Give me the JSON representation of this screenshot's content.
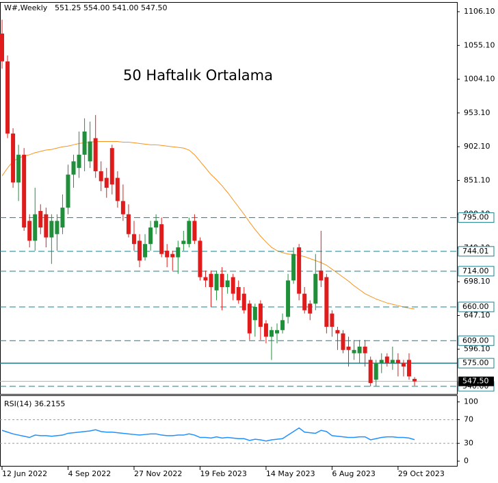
{
  "chart_data": [
    {
      "type": "candlestick",
      "symbol_timeframe": "W#,Weekly",
      "ohlc_text": "551.25 554.00 541.00 547.50",
      "annotation": {
        "text": "50 Haftalık Ortalama",
        "color": "#f7931e"
      },
      "up_color": "#1f8f3a",
      "down_color": "#e01b1b",
      "categories": [
        "12 Jun 2022",
        null,
        null,
        null,
        null,
        null,
        null,
        null,
        null,
        null,
        null,
        null,
        "4 Sep 2022",
        null,
        null,
        null,
        null,
        null,
        null,
        null,
        null,
        null,
        null,
        null,
        "27 Nov 2022",
        null,
        null,
        null,
        null,
        null,
        null,
        null,
        null,
        null,
        null,
        null,
        "19 Feb 2023",
        null,
        null,
        null,
        null,
        null,
        null,
        null,
        null,
        null,
        null,
        null,
        "14 May 2023",
        null,
        null,
        null,
        null,
        null,
        null,
        null,
        null,
        null,
        null,
        null,
        "6 Aug 2023",
        null,
        null,
        null,
        null,
        null,
        null,
        null,
        null,
        null,
        null,
        null,
        "29 Oct 2023",
        null,
        null,
        null
      ],
      "open": [
        1073,
        1031,
        922,
        848,
        890,
        790,
        760,
        805,
        800,
        765,
        770,
        780,
        810,
        860,
        870,
        890,
        880,
        915,
        865,
        855,
        900,
        855,
        820,
        800,
        770,
        760,
        735,
        755,
        780,
        785,
        745,
        740,
        735,
        755,
        755,
        790,
        760,
        705,
        710,
        685,
        710,
        690,
        705,
        690,
        680,
        665,
        640,
        665,
        635,
        615,
        620,
        625,
        645,
        700,
        750,
        680,
        665,
        665,
        715,
        705,
        650,
        625,
        620,
        600,
        590,
        590,
        600,
        580,
        550,
        575,
        585,
        575,
        580,
        575,
        580,
        551.25
      ],
      "high": [
        1094,
        1040,
        930,
        905,
        900,
        800,
        840,
        815,
        810,
        800,
        800,
        830,
        875,
        890,
        925,
        945,
        940,
        950,
        880,
        870,
        905,
        865,
        845,
        815,
        790,
        770,
        770,
        790,
        800,
        795,
        755,
        745,
        760,
        775,
        795,
        800,
        765,
        715,
        715,
        715,
        720,
        710,
        710,
        700,
        690,
        670,
        665,
        670,
        640,
        630,
        635,
        650,
        710,
        750,
        755,
        690,
        670,
        740,
        775,
        710,
        655,
        630,
        625,
        615,
        610,
        610,
        610,
        585,
        580,
        590,
        590,
        600,
        590,
        580,
        590,
        554
      ],
      "low": [
        1020,
        915,
        840,
        820,
        775,
        750,
        745,
        770,
        750,
        725,
        745,
        770,
        800,
        840,
        855,
        865,
        870,
        855,
        835,
        825,
        830,
        810,
        790,
        765,
        745,
        720,
        730,
        745,
        770,
        735,
        720,
        715,
        710,
        745,
        750,
        755,
        700,
        690,
        660,
        670,
        655,
        680,
        670,
        665,
        650,
        610,
        615,
        610,
        605,
        580,
        605,
        620,
        635,
        695,
        670,
        650,
        640,
        655,
        690,
        620,
        615,
        595,
        590,
        570,
        580,
        575,
        570,
        540,
        540,
        560,
        570,
        565,
        555,
        555,
        550,
        541
      ],
      "close": [
        1031,
        922,
        848,
        890,
        780,
        760,
        800,
        780,
        765,
        790,
        790,
        810,
        860,
        880,
        890,
        925,
        910,
        865,
        850,
        840,
        845,
        820,
        800,
        770,
        755,
        730,
        755,
        780,
        790,
        740,
        735,
        735,
        750,
        760,
        790,
        760,
        705,
        700,
        690,
        710,
        690,
        700,
        680,
        670,
        655,
        620,
        660,
        630,
        615,
        625,
        625,
        640,
        700,
        740,
        680,
        655,
        650,
        710,
        700,
        630,
        630,
        620,
        595,
        595,
        595,
        600,
        590,
        545,
        575,
        580,
        575,
        580,
        575,
        570,
        555,
        547.5
      ],
      "moving_average": {
        "color": "#f7931e",
        "values": [
          858,
          870,
          880,
          885,
          888,
          890,
          893,
          895,
          897,
          898,
          900,
          902,
          903,
          905,
          907,
          908,
          909,
          910,
          910,
          910,
          910,
          910,
          909,
          909,
          908,
          907,
          906,
          905,
          905,
          904,
          903,
          902,
          901,
          900,
          897,
          890,
          880,
          870,
          860,
          852,
          843,
          833,
          822,
          811,
          800,
          788,
          777,
          767,
          758,
          750,
          745,
          742,
          740,
          739,
          738,
          736,
          733,
          730,
          727,
          723,
          717,
          711,
          705,
          699,
          692,
          686,
          680,
          676,
          672,
          669,
          666,
          664,
          662,
          660,
          658,
          657
        ]
      },
      "ylim": [
        527.5,
        1119.6
      ],
      "yticks": [
        {
          "value": 1106.1,
          "label": "1106.10"
        },
        {
          "value": 1055.1,
          "label": "1055.10"
        },
        {
          "value": 1004.1,
          "label": "1004.10"
        },
        {
          "value": 953.1,
          "label": "953.10"
        },
        {
          "value": 902.1,
          "label": "902.10"
        },
        {
          "value": 851.1,
          "label": "851.10"
        },
        {
          "value": 800.1,
          "label": "800.10"
        },
        {
          "value": 749.1,
          "label": "749.10"
        },
        {
          "value": 698.1,
          "label": "698.10"
        },
        {
          "value": 647.1,
          "label": "647.10"
        },
        {
          "value": 596.1,
          "label": "596.10"
        }
      ],
      "level_color": "#1b7f8c",
      "levels": [
        {
          "value": 795,
          "label": "795.00",
          "style": "dashed"
        },
        {
          "value": 744.01,
          "label": "744.01",
          "style": "dashed"
        },
        {
          "value": 714,
          "label": "714.00",
          "style": "dashed"
        },
        {
          "value": 660,
          "label": "660.00",
          "style": "dashed"
        },
        {
          "value": 609,
          "label": "609.00",
          "style": "dashed"
        },
        {
          "value": 575,
          "label": "575.00",
          "style": "solid"
        },
        {
          "value": 540,
          "label": "540.00",
          "style": "dashed"
        }
      ],
      "last_price": {
        "value": 547.5,
        "label": "547.50"
      }
    },
    {
      "type": "line",
      "title": "RSI(14) 36.2155",
      "color": "#1e90ff",
      "values": [
        52,
        49,
        46,
        44,
        42,
        40,
        44,
        43,
        43,
        42,
        43,
        44,
        47,
        48,
        49,
        50,
        51,
        53,
        50,
        49,
        49,
        48,
        47,
        46,
        45,
        44,
        45,
        46,
        46,
        44,
        43,
        43,
        44,
        44,
        46,
        44,
        40,
        40,
        39,
        41,
        39,
        40,
        39,
        38,
        38,
        35,
        37,
        36,
        34,
        36,
        37,
        38,
        44,
        50,
        56,
        49,
        48,
        47,
        52,
        50,
        43,
        42,
        41,
        40,
        40,
        41,
        41,
        36,
        38,
        40,
        41,
        41,
        40,
        40,
        39,
        36.2155
      ],
      "ylim": [
        -8,
        110
      ],
      "yticks": [
        100,
        70,
        30,
        0
      ],
      "levels": [
        70,
        30
      ]
    }
  ]
}
